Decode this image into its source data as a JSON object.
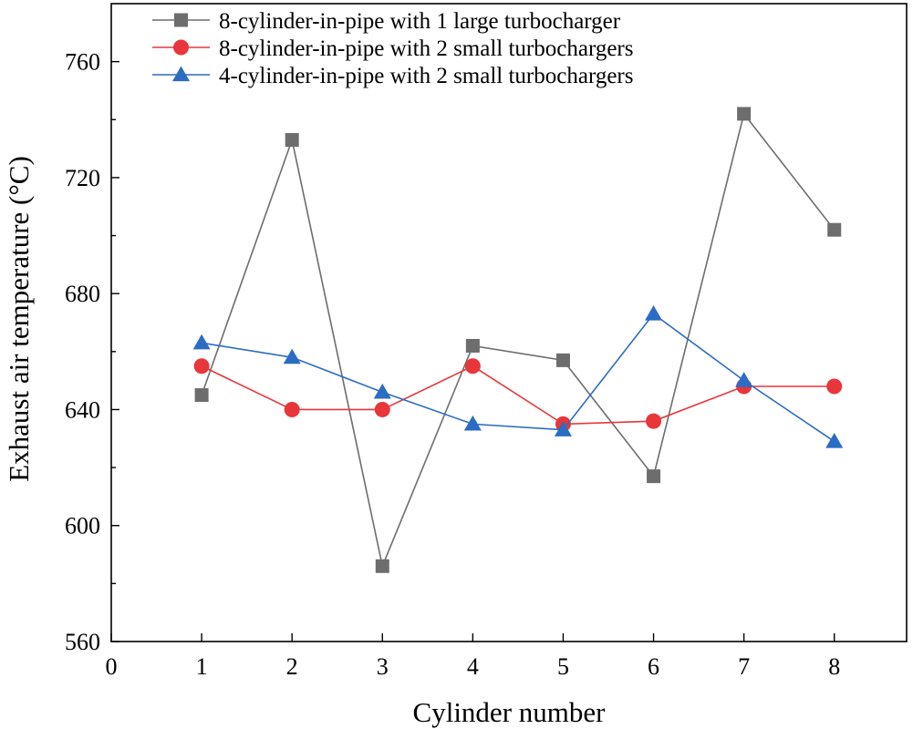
{
  "chart_data": {
    "type": "line",
    "title": "",
    "xlabel": "Cylinder number",
    "ylabel": "Exhaust air temperature (°C)",
    "xlim": [
      0,
      8.8
    ],
    "ylim": [
      560,
      780
    ],
    "xticks": [
      0,
      1,
      2,
      3,
      4,
      5,
      6,
      7,
      8
    ],
    "yticks": [
      560,
      600,
      640,
      680,
      720,
      760
    ],
    "x": [
      1,
      2,
      3,
      4,
      5,
      6,
      7,
      8
    ],
    "legend_position": "top-left",
    "series": [
      {
        "name": "8-cylinder-in-pipe with 1 large turbocharger",
        "marker": "square",
        "color": "#6d6d6d",
        "values": [
          645,
          733,
          586,
          662,
          657,
          617,
          742,
          702
        ]
      },
      {
        "name": "8-cylinder-in-pipe with 2 small turbochargers",
        "marker": "circle",
        "color": "#e8363a",
        "values": [
          655,
          640,
          640,
          655,
          635,
          636,
          648,
          648
        ]
      },
      {
        "name": "4-cylinder-in-pipe with 2 small turbochargers",
        "marker": "triangle",
        "color": "#2b6cc4",
        "values": [
          663,
          658,
          646,
          635,
          633,
          673,
          650,
          629
        ]
      }
    ]
  }
}
